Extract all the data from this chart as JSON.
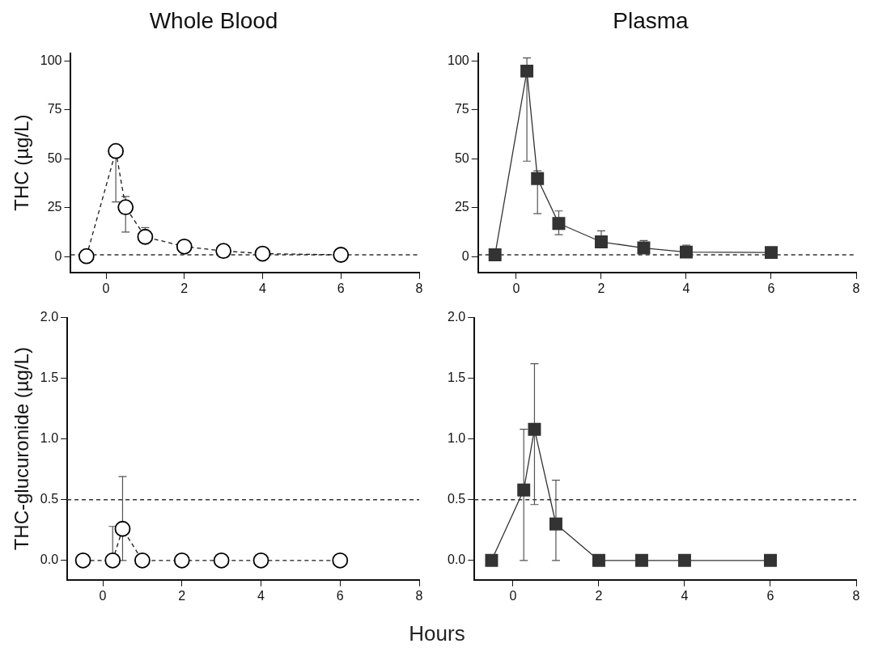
{
  "chart_data": [
    {
      "type": "line",
      "title": "Whole Blood",
      "ylabel": "THC (µg/L)",
      "x": [
        -0.5,
        0.25,
        0.5,
        1,
        2,
        3,
        4,
        6
      ],
      "series": [
        {
          "color": "#1a1a1a",
          "values": [
            0.3,
            54,
            25.3,
            10.2,
            5.2,
            3,
            1.6,
            1
          ],
          "errors": [
            null,
            [
              28,
              54
            ],
            [
              12.6,
              30.8
            ],
            [
              10.2,
              14.9
            ],
            null,
            null,
            null,
            null
          ]
        }
      ],
      "xlim": [
        -0.9,
        8
      ],
      "xticks": [
        0,
        2,
        4,
        6,
        8
      ],
      "ylim": [
        -8,
        104
      ],
      "yticks": [
        0,
        25,
        50,
        75,
        100
      ],
      "ref_lines": [
        {
          "axis": "y",
          "value": 1,
          "line_style": "dashed"
        }
      ],
      "marker": "circle",
      "line_style": "dashed",
      "grid": false,
      "legend": false
    },
    {
      "type": "line",
      "title": "Plasma",
      "x": [
        -0.5,
        0.25,
        0.5,
        1,
        2,
        3,
        4,
        6
      ],
      "series": [
        {
          "color": "#333333",
          "values": [
            1,
            94.8,
            39.9,
            17,
            7.6,
            4.5,
            2.4,
            2.2
          ],
          "errors": [
            null,
            [
              48.8,
              101.5
            ],
            [
              22,
              43.9
            ],
            [
              11.3,
              23.4
            ],
            [
              7.6,
              13.2
            ],
            [
              4.5,
              8.3
            ],
            [
              2.4,
              5.9
            ],
            null
          ]
        }
      ],
      "xlim": [
        -0.9,
        8
      ],
      "xticks": [
        0,
        2,
        4,
        6,
        8
      ],
      "ylim": [
        -8,
        104
      ],
      "yticks": [
        0,
        25,
        50,
        75,
        100
      ],
      "ref_lines": [
        {
          "axis": "y",
          "value": 1,
          "line_style": "dashed"
        }
      ],
      "marker": "square",
      "line_style": "solid",
      "grid": false,
      "legend": false
    },
    {
      "type": "line",
      "xlabel": "Hours",
      "ylabel": "THC-glucuronide (µg/L)",
      "x": [
        -0.5,
        0.25,
        0.5,
        1,
        2,
        3,
        4,
        6
      ],
      "series": [
        {
          "color": "#1a1a1a",
          "values": [
            0,
            0,
            0.26,
            0,
            0,
            0,
            0,
            0
          ],
          "errors": [
            null,
            [
              0,
              0.28
            ],
            [
              0,
              0.69
            ],
            null,
            null,
            null,
            null,
            null
          ]
        }
      ],
      "xlim": [
        -0.9,
        8
      ],
      "xticks": [
        0,
        2,
        4,
        6,
        8
      ],
      "ylim": [
        -0.16,
        2
      ],
      "yticks": [
        {
          "value": 0,
          "label": "0.0"
        },
        {
          "value": 0.5,
          "label": "0.5"
        },
        {
          "value": 1,
          "label": "1.0"
        },
        {
          "value": 1.5,
          "label": "1.5"
        },
        {
          "value": 2,
          "label": "2.0"
        }
      ],
      "ref_lines": [
        {
          "axis": "y",
          "value": 0.5,
          "line_style": "dashed"
        }
      ],
      "marker": "circle",
      "line_style": "dashed",
      "grid": false,
      "legend": false
    },
    {
      "type": "line",
      "x": [
        -0.5,
        0.25,
        0.5,
        1,
        2,
        3,
        4,
        6
      ],
      "series": [
        {
          "color": "#333333",
          "values": [
            0,
            0.58,
            1.08,
            0.3,
            0,
            0,
            0,
            0
          ],
          "errors": [
            null,
            [
              0,
              1.08
            ],
            [
              0.46,
              1.62
            ],
            [
              0,
              0.66
            ],
            null,
            null,
            null,
            null
          ]
        }
      ],
      "xlim": [
        -0.9,
        8
      ],
      "xticks": [
        0,
        2,
        4,
        6,
        8
      ],
      "ylim": [
        -0.16,
        2
      ],
      "yticks": [
        {
          "value": 0,
          "label": "0.0"
        },
        {
          "value": 0.5,
          "label": "0.5"
        },
        {
          "value": 1,
          "label": "1.0"
        },
        {
          "value": 1.5,
          "label": "1.5"
        },
        {
          "value": 2,
          "label": "2.0"
        }
      ],
      "ref_lines": [
        {
          "axis": "y",
          "value": 0.5,
          "line_style": "dashed"
        }
      ],
      "marker": "square",
      "line_style": "solid",
      "grid": false,
      "legend": false
    }
  ]
}
